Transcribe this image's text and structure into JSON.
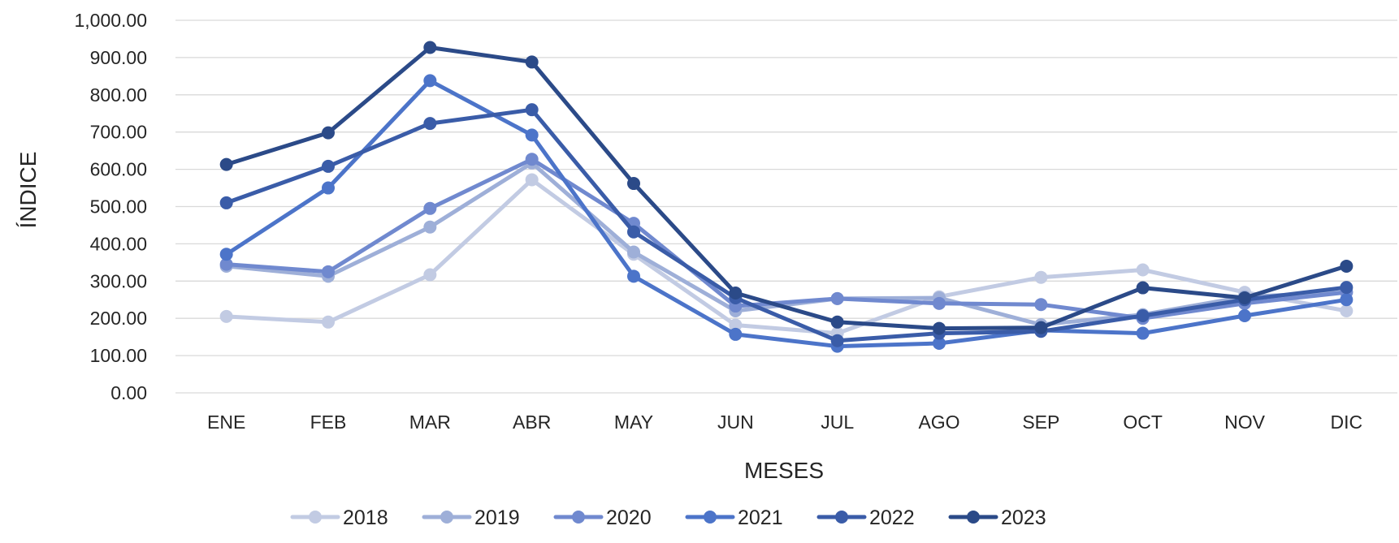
{
  "chart_data": {
    "type": "line",
    "title": "",
    "xlabel": "MESES",
    "ylabel": "ÍNDICE",
    "categories": [
      "ENE",
      "FEB",
      "MAR",
      "ABR",
      "MAY",
      "JUN",
      "JUL",
      "AGO",
      "SEP",
      "OCT",
      "NOV",
      "DIC"
    ],
    "ylim": [
      0,
      1000
    ],
    "yticks": [
      0,
      100,
      200,
      300,
      400,
      500,
      600,
      700,
      800,
      900,
      1000
    ],
    "ytick_labels": [
      "0.00",
      "100.00",
      "200.00",
      "300.00",
      "400.00",
      "500.00",
      "600.00",
      "700.00",
      "800.00",
      "900.00",
      "1,000.00"
    ],
    "grid": true,
    "legend_position": "bottom",
    "series": [
      {
        "name": "2018",
        "color": "#c2cbe3",
        "values": [
          205,
          190,
          317,
          572,
          372,
          182,
          160,
          258,
          310,
          330,
          270,
          220
        ]
      },
      {
        "name": "2019",
        "color": "#9eafd8",
        "values": [
          340,
          313,
          445,
          617,
          378,
          220,
          253,
          255,
          183,
          210,
          258,
          270
        ]
      },
      {
        "name": "2020",
        "color": "#7089cf",
        "values": [
          345,
          325,
          495,
          627,
          455,
          233,
          253,
          240,
          237,
          200,
          240,
          270
        ]
      },
      {
        "name": "2021",
        "color": "#4c74c9",
        "values": [
          372,
          550,
          838,
          692,
          313,
          157,
          125,
          133,
          168,
          160,
          207,
          250
        ]
      },
      {
        "name": "2022",
        "color": "#3a5ca8",
        "values": [
          510,
          608,
          723,
          760,
          432,
          255,
          140,
          160,
          165,
          207,
          250,
          283
        ]
      },
      {
        "name": "2023",
        "color": "#2b4a88",
        "values": [
          613,
          698,
          927,
          888,
          562,
          268,
          190,
          173,
          175,
          282,
          255,
          340
        ]
      }
    ]
  }
}
